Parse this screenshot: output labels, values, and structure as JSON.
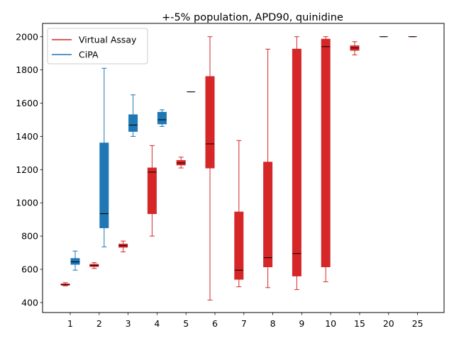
{
  "chart_data": {
    "type": "box",
    "title": "+-5% population, APD90, quinidine",
    "xlabel": "",
    "ylabel": "",
    "categories": [
      "1",
      "2",
      "3",
      "4",
      "5",
      "6",
      "7",
      "8",
      "9",
      "10",
      "15",
      "20",
      "25"
    ],
    "ylim": [
      340,
      2080
    ],
    "yticks": [
      400,
      600,
      800,
      1000,
      1200,
      1400,
      1600,
      1800,
      2000
    ],
    "grid": false,
    "legend": {
      "placement": "upper-left",
      "entries": [
        "Virtual Assay",
        "CiPA"
      ]
    },
    "colors": {
      "Virtual Assay": "#d62728",
      "CiPA": "#1f77b4",
      "median": "#000000"
    },
    "series": [
      {
        "name": "Virtual Assay",
        "boxes": [
          {
            "category": "1",
            "min": 500,
            "q1": 505,
            "median": 508,
            "q3": 512,
            "max": 520
          },
          {
            "category": "2",
            "min": 605,
            "q1": 617,
            "median": 623,
            "q3": 630,
            "max": 640
          },
          {
            "category": "3",
            "min": 705,
            "q1": 733,
            "median": 742,
            "q3": 752,
            "max": 770
          },
          {
            "category": "4",
            "min": 800,
            "q1": 935,
            "median": 1185,
            "q3": 1210,
            "max": 1345
          },
          {
            "category": "5",
            "min": 1210,
            "q1": 1228,
            "median": 1240,
            "q3": 1255,
            "max": 1275
          },
          {
            "category": "6",
            "min": 415,
            "q1": 1210,
            "median": 1355,
            "q3": 1760,
            "max": 2000
          },
          {
            "category": "7",
            "min": 495,
            "q1": 540,
            "median": 595,
            "q3": 945,
            "max": 1375
          },
          {
            "category": "8",
            "min": 490,
            "q1": 615,
            "median": 670,
            "q3": 1245,
            "max": 1925
          },
          {
            "category": "9",
            "min": 478,
            "q1": 560,
            "median": 695,
            "q3": 1925,
            "max": 2000
          },
          {
            "category": "10",
            "min": 525,
            "q1": 615,
            "median": 1940,
            "q3": 1985,
            "max": 2000
          },
          {
            "category": "15",
            "min": 1890,
            "q1": 1918,
            "median": 1932,
            "q3": 1945,
            "max": 1970
          },
          {
            "category": "20",
            "min": 2000,
            "q1": 2000,
            "median": 2000,
            "q3": 2000,
            "max": 2000
          },
          {
            "category": "25",
            "min": 2000,
            "q1": 2000,
            "median": 2000,
            "q3": 2000,
            "max": 2000
          }
        ]
      },
      {
        "name": "CiPA",
        "boxes": [
          {
            "category": "1",
            "min": 595,
            "q1": 630,
            "median": 645,
            "q3": 665,
            "max": 710
          },
          {
            "category": "2",
            "min": 735,
            "q1": 850,
            "median": 935,
            "q3": 1360,
            "max": 1810
          },
          {
            "category": "3",
            "min": 1400,
            "q1": 1430,
            "median": 1468,
            "q3": 1530,
            "max": 1650
          },
          {
            "category": "4",
            "min": 1460,
            "q1": 1475,
            "median": 1500,
            "q3": 1545,
            "max": 1560
          },
          {
            "category": "5",
            "min": 1668,
            "q1": 1668,
            "median": 1668,
            "q3": 1668,
            "max": 1668
          }
        ]
      }
    ]
  }
}
